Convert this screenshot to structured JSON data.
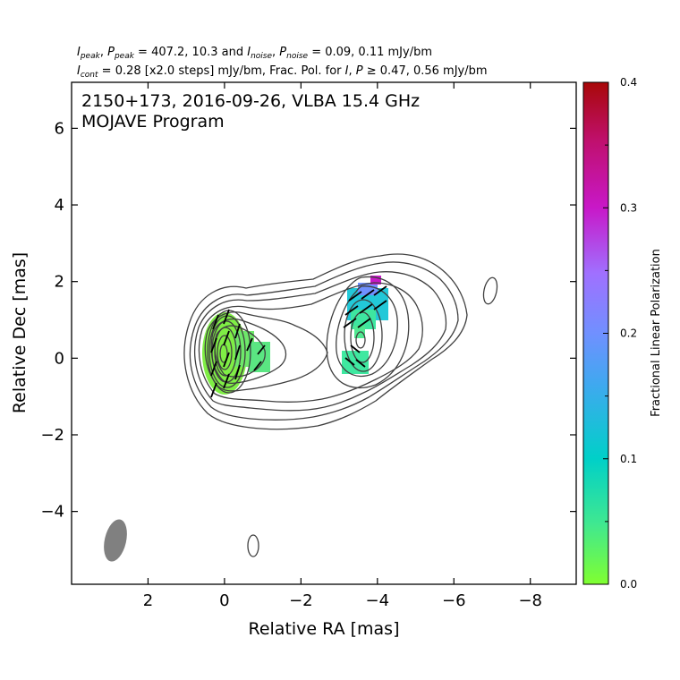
{
  "header": {
    "line1": "I_peak, P_peak = 407.2, 10.3 and I_noise, P_noise = 0.09, 0.11 mJy/bm",
    "line2": "I_cont = 0.28 [x2.0 steps] mJy/bm, Frac. Pol. for I, P ≥ 0.47, 0.56 mJy/bm"
  },
  "chart_data": {
    "type": "contour",
    "title": "2150+173, 2016-09-26, VLBA 15.4 GHz",
    "subtitle": "MOJAVE Program",
    "xlabel": "Relative RA [mas]",
    "ylabel": "Relative Dec [mas]",
    "xlim": [
      4.0,
      -9.2
    ],
    "ylim": [
      -5.9,
      7.2
    ],
    "x_ticks": [
      2,
      0,
      -2,
      -4,
      -6,
      -8
    ],
    "y_ticks": [
      -4,
      -2,
      0,
      2,
      4,
      6
    ],
    "x_tick_labels": [
      "2",
      "0",
      "−2",
      "−4",
      "−6",
      "−8"
    ],
    "y_tick_labels": [
      "−4",
      "−2",
      "0",
      "2",
      "4",
      "6"
    ],
    "colorbar": {
      "label": "Fractional Linear Polarization",
      "min": 0.0,
      "max": 0.4,
      "ticks": [
        0.0,
        0.1,
        0.2,
        0.3,
        0.4
      ],
      "tick_labels": [
        "0.0",
        "0.1",
        "0.2",
        "0.3",
        "0.4"
      ],
      "colors": [
        "#80ff30",
        "#40e890",
        "#00d0c8",
        "#40a8f0",
        "#7090ff",
        "#a070ff",
        "#c818c8",
        "#c01070",
        "#a80808"
      ]
    },
    "contour_color": "#404040",
    "beam": {
      "x": 2.8,
      "y": -4.85,
      "major_mas": 1.15,
      "minor_mas": 0.55,
      "pa_deg": 13,
      "color": "#808080"
    },
    "core": {
      "x": 0.0,
      "y": -0.1
    },
    "knot": {
      "x": -3.5,
      "y": 0.4
    },
    "fractional_polarization": [
      {
        "x": 0.0,
        "y": 0.0,
        "frac": 0.02
      },
      {
        "x": -0.9,
        "y": -0.2,
        "frac": 0.05
      },
      {
        "x": -3.7,
        "y": 1.3,
        "frac": 0.15
      },
      {
        "x": -4.0,
        "y": 1.8,
        "frac": 0.28
      },
      {
        "x": -3.6,
        "y": 0.5,
        "frac": 0.07
      },
      {
        "x": -3.5,
        "y": -0.2,
        "frac": 0.06
      }
    ]
  }
}
